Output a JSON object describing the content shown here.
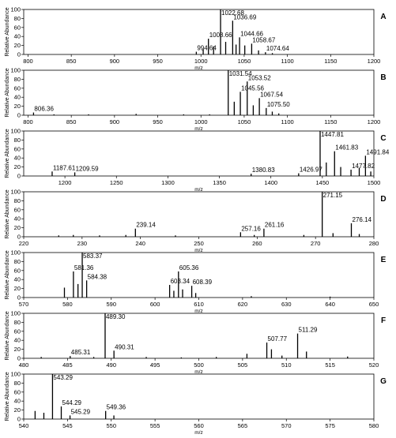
{
  "figure": {
    "y_axis_label": "Relative Abundance",
    "x_axis_label": "m/z"
  },
  "chart_data": [
    {
      "type": "bar",
      "panel": "A",
      "xlim": [
        795,
        1200
      ],
      "ylim": [
        0,
        100
      ],
      "xticks": [
        800,
        850,
        900,
        950,
        1000,
        1050,
        1100,
        1150,
        1200
      ],
      "yticks": [
        0,
        20,
        40,
        60,
        80,
        100
      ],
      "peaks": [
        {
          "x": 994.64,
          "y": 6,
          "label": "994.64"
        },
        {
          "x": 1002.6,
          "y": 12
        },
        {
          "x": 1008.66,
          "y": 35,
          "label": "1008.66"
        },
        {
          "x": 1014.6,
          "y": 18
        },
        {
          "x": 1022.68,
          "y": 100,
          "label": "1022.68"
        },
        {
          "x": 1028.6,
          "y": 28
        },
        {
          "x": 1036.69,
          "y": 75,
          "label": "1036.69"
        },
        {
          "x": 1040.6,
          "y": 22
        },
        {
          "x": 1044.66,
          "y": 38,
          "label": "1044.66"
        },
        {
          "x": 1050.7,
          "y": 20
        },
        {
          "x": 1058.67,
          "y": 24,
          "label": "1058.67"
        },
        {
          "x": 1066.6,
          "y": 9
        },
        {
          "x": 1074.64,
          "y": 5,
          "label": "1074.64"
        },
        {
          "x": 1082.6,
          "y": 3
        }
      ]
    },
    {
      "type": "bar",
      "panel": "B",
      "xlim": [
        795,
        1200
      ],
      "ylim": [
        0,
        100
      ],
      "xticks": [
        800,
        850,
        900,
        950,
        1000,
        1050,
        1100,
        1150,
        1200
      ],
      "yticks": [
        0,
        20,
        40,
        60,
        80,
        100
      ],
      "peaks": [
        {
          "x": 806.36,
          "y": 6,
          "label": "806.36"
        },
        {
          "x": 830,
          "y": 2
        },
        {
          "x": 870,
          "y": 2
        },
        {
          "x": 925,
          "y": 3
        },
        {
          "x": 980,
          "y": 2
        },
        {
          "x": 1010,
          "y": 2
        },
        {
          "x": 1031.54,
          "y": 100,
          "label": "1031.54"
        },
        {
          "x": 1038.5,
          "y": 30
        },
        {
          "x": 1045.56,
          "y": 52,
          "label": "1045.56"
        },
        {
          "x": 1053.52,
          "y": 75,
          "label": "1053.52"
        },
        {
          "x": 1060.5,
          "y": 22
        },
        {
          "x": 1067.54,
          "y": 38,
          "label": "1067.54"
        },
        {
          "x": 1075.5,
          "y": 16,
          "label": "1075.50"
        },
        {
          "x": 1082.5,
          "y": 8
        },
        {
          "x": 1090,
          "y": 4
        }
      ]
    },
    {
      "type": "bar",
      "panel": "C",
      "xlim": [
        1160,
        1500
      ],
      "ylim": [
        0,
        100
      ],
      "xticks": [
        1200,
        1250,
        1300,
        1350,
        1400,
        1450,
        1500
      ],
      "yticks": [
        0,
        20,
        40,
        60,
        80,
        100
      ],
      "peaks": [
        {
          "x": 1187.61,
          "y": 10,
          "label": "1187.61"
        },
        {
          "x": 1209.59,
          "y": 8,
          "label": "1209.59"
        },
        {
          "x": 1380.83,
          "y": 5,
          "label": "1380.83"
        },
        {
          "x": 1426.97,
          "y": 6,
          "label": "1426.97"
        },
        {
          "x": 1447.81,
          "y": 100,
          "label": "1447.81"
        },
        {
          "x": 1453.8,
          "y": 30
        },
        {
          "x": 1461.83,
          "y": 55,
          "label": "1461.83"
        },
        {
          "x": 1467.8,
          "y": 20
        },
        {
          "x": 1477.82,
          "y": 14,
          "label": "1477.82"
        },
        {
          "x": 1485.8,
          "y": 18
        },
        {
          "x": 1491.84,
          "y": 45,
          "label": "1491.84"
        },
        {
          "x": 1497,
          "y": 10
        }
      ]
    },
    {
      "type": "bar",
      "panel": "D",
      "xlim": [
        220,
        280
      ],
      "ylim": [
        0,
        100
      ],
      "xticks": [
        220,
        230,
        240,
        250,
        260,
        270,
        280
      ],
      "yticks": [
        0,
        20,
        40,
        60,
        80,
        100
      ],
      "peaks": [
        {
          "x": 226,
          "y": 3
        },
        {
          "x": 228.5,
          "y": 4
        },
        {
          "x": 233,
          "y": 3
        },
        {
          "x": 237.5,
          "y": 4
        },
        {
          "x": 239.14,
          "y": 18,
          "label": "239.14"
        },
        {
          "x": 246,
          "y": 3
        },
        {
          "x": 257.16,
          "y": 10,
          "label": "257.16"
        },
        {
          "x": 259.5,
          "y": 4
        },
        {
          "x": 261.16,
          "y": 18,
          "label": "261.16"
        },
        {
          "x": 268,
          "y": 4
        },
        {
          "x": 271.15,
          "y": 100,
          "label": "271.15"
        },
        {
          "x": 273,
          "y": 8
        },
        {
          "x": 276.14,
          "y": 30,
          "label": "276.14"
        },
        {
          "x": 277.5,
          "y": 6
        }
      ]
    },
    {
      "type": "bar",
      "panel": "E",
      "xlim": [
        570,
        650
      ],
      "ylim": [
        0,
        100
      ],
      "xticks": [
        570,
        580,
        590,
        600,
        610,
        620,
        630,
        640,
        650
      ],
      "yticks": [
        0,
        20,
        40,
        60,
        80,
        100
      ],
      "peaks": [
        {
          "x": 579.3,
          "y": 22
        },
        {
          "x": 581.36,
          "y": 58,
          "label": "581.36"
        },
        {
          "x": 582.4,
          "y": 30
        },
        {
          "x": 583.37,
          "y": 100,
          "label": "583.37"
        },
        {
          "x": 584.38,
          "y": 38,
          "label": "584.38"
        },
        {
          "x": 603.34,
          "y": 28,
          "label": "603.34"
        },
        {
          "x": 604.3,
          "y": 15
        },
        {
          "x": 605.36,
          "y": 58,
          "label": "605.36"
        },
        {
          "x": 606.3,
          "y": 18
        },
        {
          "x": 608.39,
          "y": 26,
          "label": "608.39"
        },
        {
          "x": 609.3,
          "y": 10
        },
        {
          "x": 622,
          "y": 3
        },
        {
          "x": 640,
          "y": 2
        }
      ]
    },
    {
      "type": "bar",
      "panel": "F",
      "xlim": [
        480,
        520
      ],
      "ylim": [
        0,
        100
      ],
      "xticks": [
        480,
        485,
        490,
        495,
        500,
        505,
        510,
        515,
        520
      ],
      "yticks": [
        0,
        20,
        40,
        60,
        80,
        100
      ],
      "peaks": [
        {
          "x": 482,
          "y": 3
        },
        {
          "x": 485.31,
          "y": 5,
          "label": "485.31"
        },
        {
          "x": 488,
          "y": 3
        },
        {
          "x": 489.3,
          "y": 100,
          "label": "489.30"
        },
        {
          "x": 490.31,
          "y": 17,
          "label": "490.31"
        },
        {
          "x": 494,
          "y": 3
        },
        {
          "x": 498,
          "y": 2
        },
        {
          "x": 502,
          "y": 3
        },
        {
          "x": 505.5,
          "y": 10
        },
        {
          "x": 507.77,
          "y": 35,
          "label": "507.77"
        },
        {
          "x": 508.3,
          "y": 20
        },
        {
          "x": 509.5,
          "y": 6
        },
        {
          "x": 511.29,
          "y": 55,
          "label": "511.29"
        },
        {
          "x": 512.3,
          "y": 15
        },
        {
          "x": 517,
          "y": 4
        }
      ]
    },
    {
      "type": "bar",
      "panel": "G",
      "xlim": [
        540,
        580
      ],
      "ylim": [
        0,
        100
      ],
      "xticks": [
        540,
        545,
        550,
        555,
        560,
        565,
        570,
        575,
        580
      ],
      "yticks": [
        0,
        20,
        40,
        60,
        80,
        100
      ],
      "peaks": [
        {
          "x": 541.3,
          "y": 18
        },
        {
          "x": 542.3,
          "y": 14
        },
        {
          "x": 543.29,
          "y": 100,
          "label": "543.29"
        },
        {
          "x": 544.29,
          "y": 28,
          "label": "544.29"
        },
        {
          "x": 545.29,
          "y": 8,
          "label": "545.29"
        },
        {
          "x": 549.36,
          "y": 18,
          "label": "549.36"
        },
        {
          "x": 550.3,
          "y": 8
        }
      ]
    }
  ]
}
